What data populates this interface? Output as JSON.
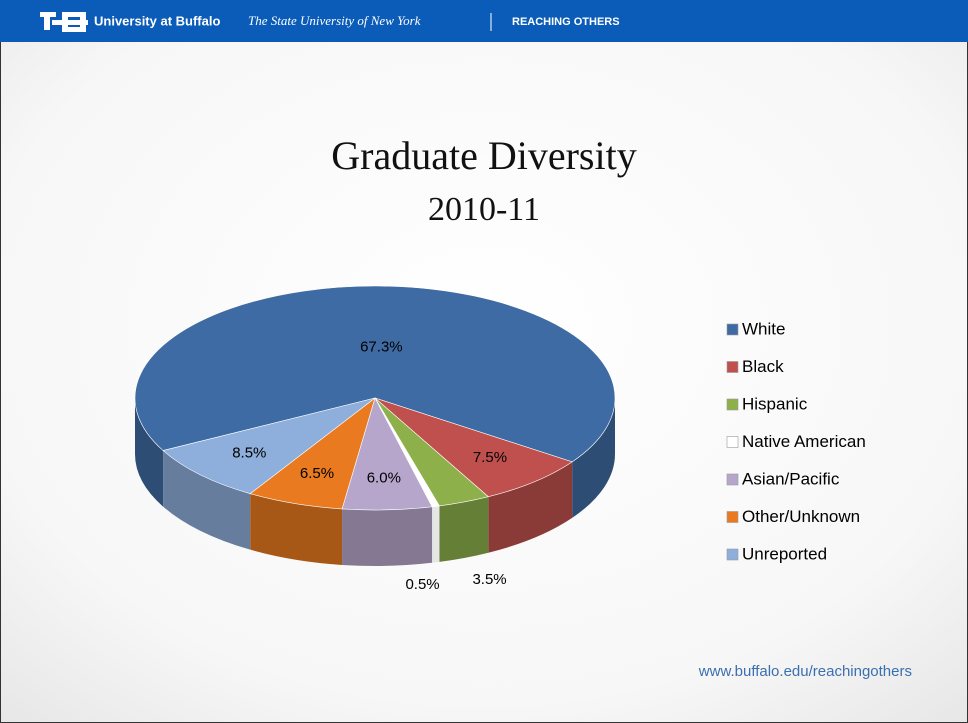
{
  "header": {
    "institution": "University at Buffalo",
    "system": "The State University of New York",
    "tagline": "REACHING OTHERS"
  },
  "footer": {
    "url": "www.buffalo.edu/reachingothers"
  },
  "chart_data": {
    "type": "pie",
    "title": "Graduate Diversity",
    "subtitle": "2010-11",
    "categories": [
      "White",
      "Black",
      "Hispanic",
      "Native American",
      "Asian/Pacific",
      "Other/Unknown",
      "Unreported"
    ],
    "values": [
      67.3,
      7.5,
      3.5,
      0.5,
      6.0,
      6.5,
      8.5
    ],
    "value_labels": [
      "67.3%",
      "7.5%",
      "3.5%",
      "0.5%",
      "6.0%",
      "6.5%",
      "8.5%"
    ],
    "colors": [
      "#3e6ba3",
      "#c0504d",
      "#8eb04b",
      "#ffffff",
      "#b7a6cc",
      "#ea7a1f",
      "#8eaedb"
    ],
    "legend": "right"
  }
}
